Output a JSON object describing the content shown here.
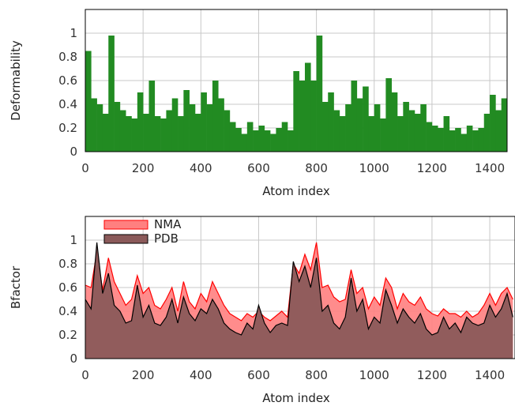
{
  "chart_data": [
    {
      "type": "bar",
      "title": "",
      "xlabel": "Atom index",
      "ylabel": "Deformability",
      "xlim": [
        0,
        1460
      ],
      "ylim": [
        0,
        1.2
      ],
      "xticks": [
        0,
        200,
        400,
        600,
        800,
        1000,
        1200,
        1400
      ],
      "xtick_labels": [
        "0",
        "200",
        "400",
        "600",
        "800",
        "1000",
        "1200",
        "1400"
      ],
      "yticks": [
        0,
        0.2,
        0.4,
        0.6,
        0.8,
        1
      ],
      "ytick_labels": [
        "0",
        "0.2",
        "0.4",
        "0.6",
        "0.8",
        "1"
      ],
      "grid": true,
      "colors": {
        "bar": "#228b22"
      },
      "x_step": 20,
      "values": [
        0.85,
        0.45,
        0.4,
        0.32,
        0.98,
        0.42,
        0.35,
        0.3,
        0.28,
        0.5,
        0.32,
        0.6,
        0.3,
        0.28,
        0.35,
        0.45,
        0.3,
        0.52,
        0.4,
        0.32,
        0.5,
        0.4,
        0.6,
        0.45,
        0.35,
        0.25,
        0.2,
        0.15,
        0.25,
        0.18,
        0.22,
        0.18,
        0.15,
        0.2,
        0.25,
        0.18,
        0.68,
        0.6,
        0.75,
        0.6,
        0.98,
        0.42,
        0.5,
        0.35,
        0.3,
        0.4,
        0.6,
        0.45,
        0.55,
        0.3,
        0.4,
        0.28,
        0.62,
        0.5,
        0.3,
        0.42,
        0.35,
        0.32,
        0.4,
        0.25,
        0.22,
        0.2,
        0.3,
        0.18,
        0.2,
        0.15,
        0.22,
        0.18,
        0.2,
        0.32,
        0.48,
        0.35,
        0.45,
        0.6,
        0.4
      ]
    },
    {
      "type": "area",
      "title": "",
      "xlabel": "Atom index",
      "ylabel": "Bfactor",
      "xlim": [
        0,
        1460
      ],
      "ylim": [
        0,
        1.2
      ],
      "xticks": [
        0,
        200,
        400,
        600,
        800,
        1000,
        1200,
        1400
      ],
      "xtick_labels": [
        "0",
        "200",
        "400",
        "600",
        "800",
        "1000",
        "1200",
        "1400"
      ],
      "yticks": [
        0,
        0.2,
        0.4,
        0.6,
        0.8,
        1
      ],
      "ytick_labels": [
        "0",
        "0.2",
        "0.4",
        "0.6",
        "0.8",
        "1"
      ],
      "grid": true,
      "legend_position": "top-left",
      "x_step": 20,
      "series": [
        {
          "name": "NMA",
          "color": "#ff0000",
          "fill": "#ff8080",
          "values": [
            0.62,
            0.6,
            0.9,
            0.58,
            0.85,
            0.65,
            0.55,
            0.45,
            0.5,
            0.7,
            0.55,
            0.6,
            0.45,
            0.42,
            0.5,
            0.6,
            0.4,
            0.65,
            0.48,
            0.42,
            0.55,
            0.48,
            0.65,
            0.55,
            0.45,
            0.38,
            0.35,
            0.32,
            0.38,
            0.35,
            0.4,
            0.35,
            0.32,
            0.36,
            0.4,
            0.35,
            0.8,
            0.72,
            0.88,
            0.75,
            0.98,
            0.6,
            0.62,
            0.52,
            0.48,
            0.5,
            0.75,
            0.55,
            0.6,
            0.42,
            0.52,
            0.45,
            0.68,
            0.6,
            0.42,
            0.55,
            0.48,
            0.45,
            0.52,
            0.42,
            0.38,
            0.36,
            0.42,
            0.38,
            0.38,
            0.35,
            0.4,
            0.35,
            0.38,
            0.45,
            0.55,
            0.45,
            0.55,
            0.6,
            0.5
          ]
        },
        {
          "name": "PDB",
          "color": "#000000",
          "fill": "#8b5a5a",
          "values": [
            0.5,
            0.42,
            0.98,
            0.55,
            0.72,
            0.45,
            0.4,
            0.3,
            0.32,
            0.62,
            0.35,
            0.45,
            0.3,
            0.28,
            0.35,
            0.5,
            0.3,
            0.52,
            0.38,
            0.32,
            0.42,
            0.38,
            0.5,
            0.42,
            0.3,
            0.25,
            0.22,
            0.2,
            0.3,
            0.25,
            0.45,
            0.3,
            0.22,
            0.28,
            0.3,
            0.28,
            0.82,
            0.65,
            0.78,
            0.6,
            0.85,
            0.4,
            0.45,
            0.3,
            0.25,
            0.35,
            0.68,
            0.4,
            0.5,
            0.25,
            0.35,
            0.3,
            0.58,
            0.45,
            0.3,
            0.42,
            0.35,
            0.3,
            0.38,
            0.25,
            0.2,
            0.22,
            0.35,
            0.25,
            0.3,
            0.22,
            0.35,
            0.3,
            0.28,
            0.3,
            0.45,
            0.35,
            0.42,
            0.55,
            0.35
          ]
        }
      ]
    }
  ]
}
